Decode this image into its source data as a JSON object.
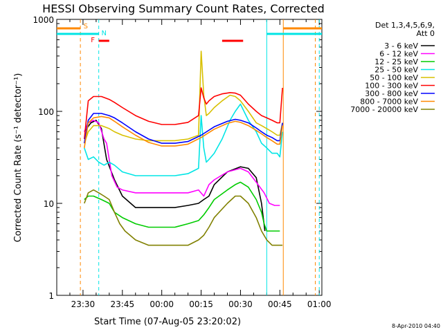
{
  "chart_data": {
    "type": "line",
    "title": "HESSI Observing Summary Count Rates, Corrected",
    "xlabel": "Start Time (07-Aug-05 23:20:02)",
    "ylabel": "Corrected Count Rate (s⁻¹ detector⁻¹)",
    "yscale": "log",
    "ylim": [
      1,
      1000
    ],
    "xlim_minutes_from_start": [
      0,
      101
    ],
    "x_tick_labels": [
      "23:30",
      "23:45",
      "00:00",
      "00:15",
      "00:30",
      "00:45",
      "01:00"
    ],
    "x_tick_minutes_from_start": [
      10,
      25,
      40,
      55,
      70,
      85,
      100
    ],
    "y_tick_labels": [
      "1",
      "10",
      "100",
      "1000"
    ],
    "y_tick_values": [
      1,
      10,
      100,
      1000
    ],
    "legend_header": [
      "Det 1,3,4,5,6,9,",
      "Att 0"
    ],
    "series": [
      {
        "name": "3 - 6 keV",
        "color": "#000000",
        "x": [
          10.5,
          13,
          15,
          17,
          19,
          22,
          25,
          30,
          35,
          40,
          45,
          50,
          54,
          56,
          58,
          60,
          65,
          70,
          73,
          76,
          78,
          79.3
        ],
        "y": [
          60,
          75,
          80,
          65,
          30,
          18,
          12,
          9,
          9,
          9,
          9,
          9.5,
          10,
          11,
          12,
          16,
          22,
          25,
          24,
          19,
          10,
          5
        ]
      },
      {
        "name": "6 - 12 keV",
        "color": "#ff00ff",
        "x": [
          10.5,
          12,
          14,
          16,
          18,
          19,
          20,
          21,
          23,
          25,
          30,
          35,
          40,
          45,
          50,
          54,
          56,
          58,
          60,
          65,
          70,
          73,
          76,
          79,
          81,
          83,
          85
        ],
        "y": [
          60,
          75,
          80,
          75,
          50,
          45,
          30,
          20,
          15,
          14,
          13,
          13,
          13,
          13,
          13,
          14,
          12,
          16,
          18,
          22,
          24,
          22,
          17,
          13,
          10,
          9.5,
          9.5
        ]
      },
      {
        "name": "12 - 25 keV",
        "color": "#00cc00",
        "x": [
          10.5,
          12,
          14,
          17,
          20,
          22,
          25,
          30,
          35,
          40,
          45,
          50,
          54,
          56,
          58,
          60,
          65,
          68,
          70,
          73,
          76,
          78,
          79,
          80,
          82,
          84,
          85
        ],
        "y": [
          11,
          12,
          12,
          11,
          10,
          8,
          7,
          6,
          5.5,
          5.5,
          5.5,
          6,
          6.5,
          7.5,
          9,
          11,
          14,
          16,
          17,
          15,
          11,
          8,
          6,
          5,
          5,
          5,
          5
        ]
      },
      {
        "name": "25 - 50 keV",
        "color": "#00e5e5",
        "x": [
          10.5,
          12,
          14,
          16,
          18,
          20,
          22,
          25,
          30,
          35,
          40,
          45,
          50,
          54,
          55,
          56,
          57,
          58,
          60,
          63,
          66,
          68,
          70,
          73,
          76,
          78,
          80,
          82,
          84,
          85,
          86
        ],
        "y": [
          40,
          30,
          32,
          28,
          26,
          28,
          26,
          22,
          20,
          20,
          20,
          20,
          21,
          24,
          90,
          40,
          28,
          30,
          35,
          50,
          80,
          100,
          120,
          80,
          60,
          45,
          40,
          35,
          35,
          32,
          60
        ]
      },
      {
        "name": "50 - 100 keV",
        "color": "#d8c000",
        "x": [
          10.5,
          12,
          14,
          17,
          20,
          22,
          25,
          30,
          35,
          40,
          45,
          50,
          54,
          55,
          56,
          57,
          58,
          60,
          63,
          66,
          68,
          70,
          73,
          76,
          78,
          80,
          82,
          84,
          85,
          86
        ],
        "y": [
          45,
          60,
          70,
          70,
          65,
          60,
          55,
          50,
          48,
          48,
          48,
          50,
          55,
          450,
          150,
          90,
          95,
          110,
          130,
          150,
          145,
          130,
          100,
          75,
          70,
          65,
          60,
          55,
          55,
          75
        ]
      },
      {
        "name": "100 - 300 keV",
        "color": "#ff0000",
        "x": [
          10.5,
          12,
          14,
          17,
          20,
          22,
          25,
          30,
          35,
          40,
          45,
          50,
          54,
          55,
          56,
          57,
          58,
          60,
          63,
          66,
          68,
          70,
          73,
          76,
          78,
          80,
          82,
          84,
          85,
          86
        ],
        "y": [
          50,
          130,
          145,
          145,
          135,
          125,
          110,
          90,
          78,
          72,
          72,
          76,
          90,
          180,
          140,
          120,
          130,
          145,
          155,
          160,
          158,
          150,
          120,
          100,
          90,
          85,
          80,
          75,
          75,
          180
        ]
      },
      {
        "name": "300 - 800 keV",
        "color": "#0000ff",
        "x": [
          10.5,
          12,
          14,
          17,
          20,
          22,
          25,
          30,
          35,
          40,
          45,
          50,
          55,
          60,
          65,
          68,
          70,
          73,
          76,
          78,
          80,
          82,
          84,
          85,
          86
        ],
        "y": [
          45,
          80,
          95,
          95,
          90,
          85,
          75,
          60,
          50,
          45,
          45,
          47,
          55,
          68,
          78,
          82,
          80,
          75,
          66,
          60,
          55,
          52,
          48,
          48,
          75
        ]
      },
      {
        "name": "800 - 7000 keV",
        "color": "#ff8800",
        "x": [
          10.5,
          12,
          14,
          17,
          20,
          22,
          25,
          30,
          35,
          40,
          45,
          50,
          55,
          60,
          65,
          68,
          70,
          73,
          76,
          78,
          80,
          82,
          84,
          85,
          86
        ],
        "y": [
          40,
          75,
          85,
          88,
          85,
          78,
          68,
          55,
          46,
          42,
          42,
          44,
          52,
          64,
          74,
          78,
          76,
          70,
          62,
          57,
          52,
          48,
          44,
          44,
          70
        ]
      },
      {
        "name": "7000 - 20000 keV",
        "color": "#808000",
        "x": [
          10.5,
          12,
          14,
          16,
          18,
          20,
          22,
          24,
          26,
          30,
          35,
          40,
          45,
          50,
          54,
          56,
          58,
          60,
          65,
          68,
          70,
          73,
          76,
          78,
          80,
          82,
          84,
          85,
          86
        ],
        "y": [
          10,
          13,
          14,
          13,
          12,
          11,
          8,
          6,
          5,
          4,
          3.5,
          3.5,
          3.5,
          3.5,
          4,
          4.5,
          5.5,
          7,
          10,
          12,
          12,
          10,
          7,
          5,
          4,
          3.5,
          3.5,
          3.5,
          3.5
        ]
      }
    ],
    "status_flags": [
      {
        "label": "S",
        "color": "#ff8800"
      },
      {
        "label": "N",
        "color": "#00e5e5"
      },
      {
        "label": "F",
        "color": "#ff0000"
      }
    ]
  },
  "timestamp": "8-Apr-2010 04:40"
}
